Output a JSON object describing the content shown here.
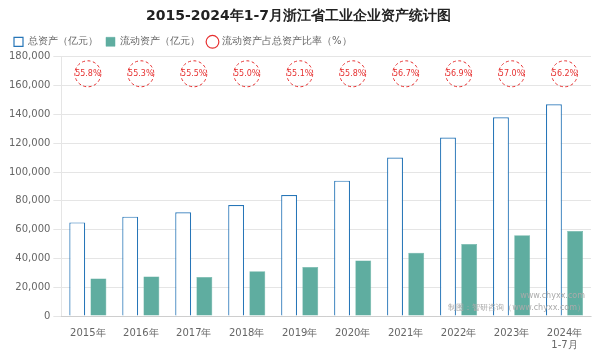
{
  "chart_data": {
    "type": "bar",
    "title": "2015-2024年1-7月浙江省工业企业资产统计图",
    "categories": [
      "2015年",
      "2016年",
      "2017年",
      "2018年",
      "2019年",
      "2020年",
      "2021年",
      "2022年",
      "2023年",
      "2024年\n1-7月"
    ],
    "series": [
      {
        "name": "总资产（亿元）",
        "color": "#2776B8",
        "values": [
          65000,
          69000,
          72000,
          77000,
          84000,
          94000,
          110000,
          124000,
          138000,
          147000
        ]
      },
      {
        "name": "流动资产（亿元）",
        "color": "#5FADA0",
        "values": [
          26000,
          27500,
          27000,
          31000,
          34000,
          38500,
          44000,
          50000,
          56000,
          59000
        ]
      },
      {
        "name": "流动资产占总资产比率（%）",
        "color": "#E63030",
        "marker": "circle",
        "line_style": "dashed",
        "values": [
          55.8,
          55.3,
          55.5,
          55.0,
          55.1,
          55.8,
          56.7,
          56.9,
          57.0,
          56.2
        ],
        "value_labels": [
          "55.8%",
          "55.3%",
          "55.5%",
          "55.0%",
          "55.1%",
          "55.8%",
          "56.7%",
          "56.9%",
          "57.0%",
          "56.2%"
        ]
      }
    ],
    "ylim": [
      0,
      180000
    ],
    "yticks": [
      0,
      {
        "value": 20000,
        "label": "20,000"
      },
      {
        "value": 40000,
        "label": "40,000"
      },
      {
        "value": 60000,
        "label": "60,000"
      },
      {
        "value": 80000,
        "label": "80,000"
      },
      {
        "value": 100000,
        "label": "100,000"
      },
      {
        "value": 120000,
        "label": "120,000"
      },
      {
        "value": 140000,
        "label": "140,000"
      },
      {
        "value": 160000,
        "label": "160,000"
      },
      {
        "value": 180000,
        "label": "180,000"
      }
    ],
    "grid": true,
    "legend": "upper left",
    "annotations": [
      {
        "text": "www.chyxx.com"
      },
      {
        "text": "制图：智研咨询（www.chyxx.com）"
      }
    ]
  }
}
